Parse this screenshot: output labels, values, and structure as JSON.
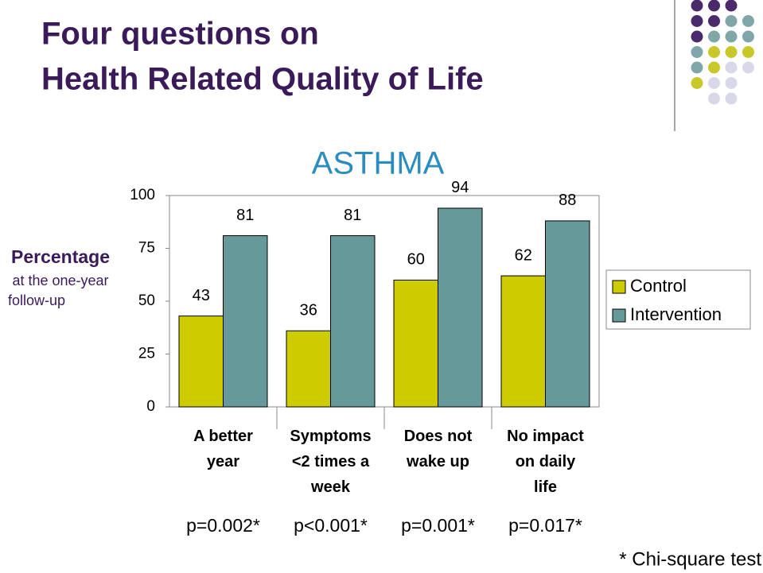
{
  "title": [
    "Four questions on",
    "Health Related Quality of Life"
  ],
  "chart_data": {
    "type": "bar",
    "title": "ASTHMA",
    "ylabel": [
      "Percentage",
      "at the one-year",
      "follow-up"
    ],
    "categories": [
      "A better\nyear",
      "Symptoms\n<2 times a\nweek",
      "Does not\nwake up",
      "No impact\non daily\nlife"
    ],
    "series": [
      {
        "name": "Control",
        "color": "#cccc00",
        "values": [
          43,
          36,
          60,
          62
        ]
      },
      {
        "name": "Intervention",
        "color": "#669999",
        "values": [
          81,
          81,
          94,
          88
        ]
      }
    ],
    "ylim": [
      0,
      100
    ],
    "yticks": [
      0,
      25,
      50,
      75,
      100
    ],
    "grid": false,
    "legend": "right",
    "p_values": [
      "p=0.002*",
      "p<0.001*",
      "p=0.001*",
      "p=0.017*"
    ],
    "footnote": "* Chi-square test"
  }
}
